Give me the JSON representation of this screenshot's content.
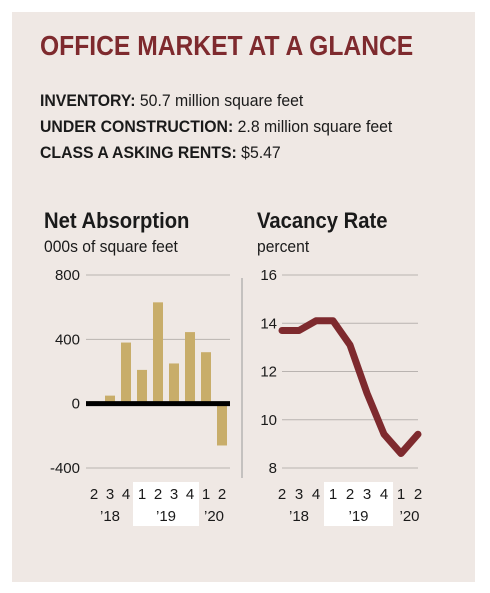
{
  "header": {
    "title": "OFFICE MARKET AT A GLANCE",
    "stats": [
      {
        "label": "INVENTORY:",
        "value": "50.7 million square feet"
      },
      {
        "label": "UNDER CONSTRUCTION:",
        "value": "2.8 million square feet"
      },
      {
        "label": "CLASS A ASKING RENTS:",
        "value": "$5.47"
      }
    ]
  },
  "colors": {
    "accent": "#7e2a2e",
    "bar": "#c8ad6a",
    "line": "#7e2a2e",
    "highlight": "#ffffff",
    "background": "#efe8e4"
  },
  "chart_data": [
    {
      "type": "bar",
      "title": "Net Absorption",
      "ylabel": "000s of square feet",
      "categories": [
        "2",
        "3",
        "4",
        "1",
        "2",
        "3",
        "4",
        "1",
        "2"
      ],
      "year_labels": [
        "’18",
        "’19",
        "’20"
      ],
      "values": [
        15,
        50,
        380,
        210,
        630,
        250,
        445,
        320,
        -260
      ],
      "ylim": [
        -400,
        800
      ],
      "yticks": [
        "800",
        "400",
        "0",
        "-400"
      ],
      "ytick_values": [
        800,
        400,
        0,
        -400
      ],
      "grid": true
    },
    {
      "type": "line",
      "title": "Vacancy Rate",
      "ylabel": "percent",
      "categories": [
        "2",
        "3",
        "4",
        "1",
        "2",
        "3",
        "4",
        "1",
        "2"
      ],
      "year_labels": [
        "’18",
        "’19",
        "’20"
      ],
      "values": [
        13.7,
        13.7,
        14.1,
        14.1,
        13.1,
        11.1,
        9.4,
        8.6,
        9.4
      ],
      "ylim": [
        8,
        16
      ],
      "yticks": [
        "16",
        "14",
        "12",
        "10",
        "8"
      ],
      "ytick_values": [
        16,
        14,
        12,
        10,
        8
      ],
      "grid": true
    }
  ]
}
